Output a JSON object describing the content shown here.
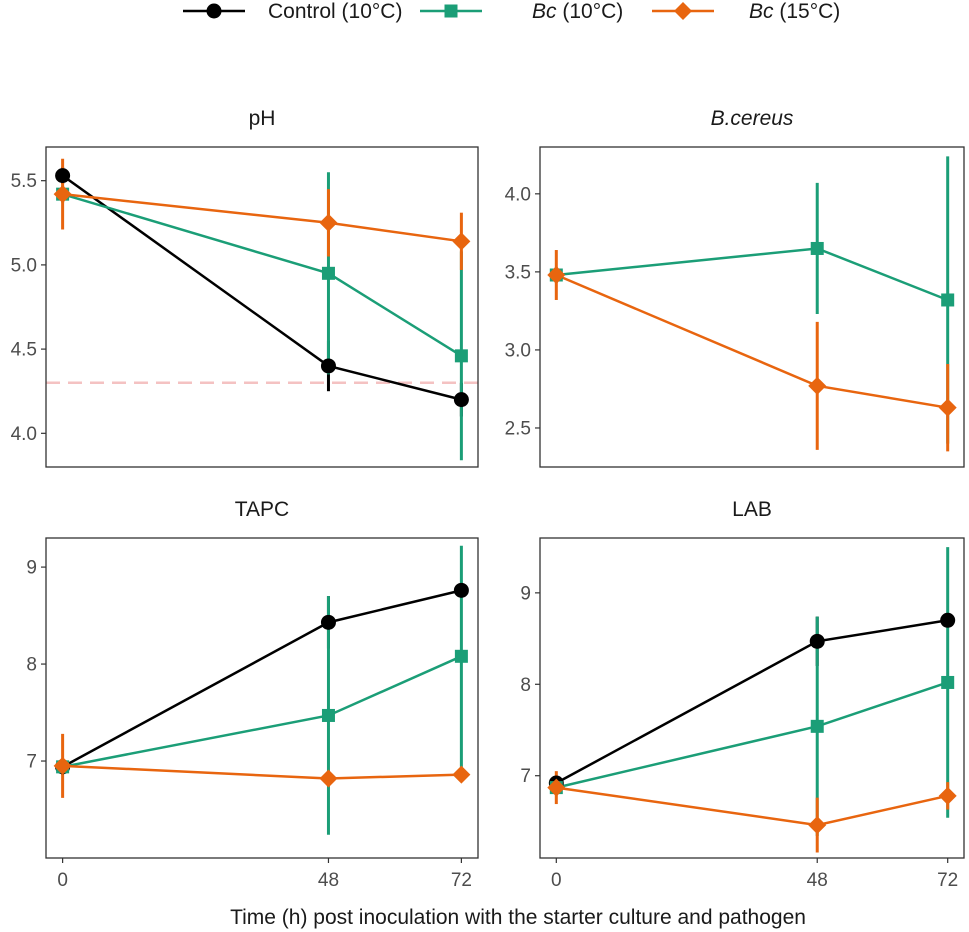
{
  "chart_data": {
    "type": "line",
    "xlabel": "Time (h) post inoculation with the starter culture and pathogen",
    "x": [
      0,
      48,
      72
    ],
    "x_tick_labels": [
      "0",
      "48",
      "72"
    ],
    "legend": [
      {
        "key": "control",
        "label_parts": [
          {
            "text": "Control (10°C)",
            "italic": false
          }
        ],
        "color": "#000000",
        "marker": "circle"
      },
      {
        "key": "bc10",
        "label_parts": [
          {
            "text": "Bc",
            "italic": true
          },
          {
            "text": " (10°C)",
            "italic": false
          }
        ],
        "color": "#1b9e77",
        "marker": "square"
      },
      {
        "key": "bc15",
        "label_parts": [
          {
            "text": "Bc",
            "italic": true
          },
          {
            "text": " (15°C)",
            "italic": false
          }
        ],
        "color": "#e8650f",
        "marker": "diamond"
      }
    ],
    "panels": [
      {
        "title": "pH",
        "title_italic": false,
        "ylim": [
          3.8,
          5.7
        ],
        "yticks": [
          4.0,
          4.5,
          5.0,
          5.5
        ],
        "ytick_labels": [
          "4.0",
          "4.5",
          "5.0",
          "5.5"
        ],
        "reference_line": 4.3,
        "series": [
          {
            "key": "control",
            "values": [
              5.53,
              4.4,
              4.2
            ],
            "err": [
              0.05,
              0.15,
              0.1
            ]
          },
          {
            "key": "bc10",
            "values": [
              5.42,
              4.95,
              4.46
            ],
            "err": [
              0.05,
              0.6,
              0.62
            ]
          },
          {
            "key": "bc15",
            "values": [
              5.42,
              5.25,
              5.14
            ],
            "err": [
              0.21,
              0.2,
              0.17
            ]
          }
        ]
      },
      {
        "title": "B.cereus",
        "title_italic": true,
        "ylim": [
          2.25,
          4.3
        ],
        "yticks": [
          2.5,
          3.0,
          3.5,
          4.0
        ],
        "ytick_labels": [
          "2.5",
          "3.0",
          "3.5",
          "4.0"
        ],
        "series": [
          {
            "key": "bc10",
            "values": [
              3.48,
              3.65,
              3.32
            ],
            "err": [
              0.05,
              0.42,
              0.92
            ]
          },
          {
            "key": "bc15",
            "values": [
              3.48,
              2.77,
              2.63
            ],
            "err": [
              0.16,
              0.41,
              0.28
            ]
          }
        ]
      },
      {
        "title": "TAPC",
        "title_italic": false,
        "ylim": [
          6.0,
          9.3
        ],
        "yticks": [
          7,
          8,
          9
        ],
        "ytick_labels": [
          "7",
          "8",
          "9"
        ],
        "series": [
          {
            "key": "control",
            "values": [
              6.94,
              8.43,
              8.76
            ],
            "err": [
              0.05,
              0.27,
              0.05
            ]
          },
          {
            "key": "bc10",
            "values": [
              6.94,
              7.47,
              8.08
            ],
            "err": [
              0.05,
              1.23,
              1.14
            ]
          },
          {
            "key": "bc15",
            "values": [
              6.95,
              6.82,
              6.86
            ],
            "err": [
              0.33,
              0.05,
              0.05
            ]
          }
        ]
      },
      {
        "title": "LAB",
        "title_italic": false,
        "ylim": [
          6.1,
          9.6
        ],
        "yticks": [
          7,
          8,
          9
        ],
        "ytick_labels": [
          "7",
          "8",
          "9"
        ],
        "series": [
          {
            "key": "control",
            "values": [
              6.92,
              8.47,
              8.7
            ],
            "err": [
              0.05,
              0.27,
              0.05
            ]
          },
          {
            "key": "bc10",
            "values": [
              6.87,
              7.54,
              8.02
            ],
            "err": [
              0.05,
              1.2,
              1.48
            ]
          },
          {
            "key": "bc15",
            "values": [
              6.87,
              6.46,
              6.78
            ],
            "err": [
              0.18,
              0.3,
              0.15
            ]
          }
        ]
      }
    ]
  }
}
